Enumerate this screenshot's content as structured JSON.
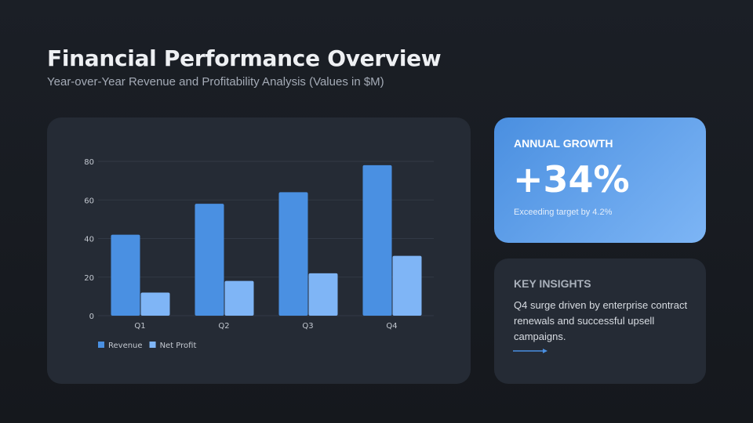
{
  "header": {
    "title": "Financial Performance Overview",
    "subtitle": "Year-over-Year Revenue and Profitability Analysis (Values in $M)"
  },
  "growth": {
    "label": "ANNUAL GROWTH",
    "value": "+34%",
    "sub": "Exceeding target by 4.2%"
  },
  "insights": {
    "label": "KEY INSIGHTS",
    "text": "Q4 surge driven by enterprise contract renewals and successful upsell campaigns.",
    "icon": "arrow-right-icon"
  },
  "chart_data": {
    "type": "bar",
    "categories": [
      "Q1",
      "Q2",
      "Q3",
      "Q4"
    ],
    "series": [
      {
        "name": "Revenue",
        "values": [
          42,
          58,
          64,
          78
        ],
        "color": "#4a90e2"
      },
      {
        "name": "Net Profit",
        "values": [
          12,
          18,
          22,
          31
        ],
        "color": "#7fb5f6"
      }
    ],
    "yticks": [
      0,
      20,
      40,
      60,
      80
    ],
    "ylim": [
      0,
      80
    ],
    "grid": true,
    "legend": "bottom-left"
  }
}
